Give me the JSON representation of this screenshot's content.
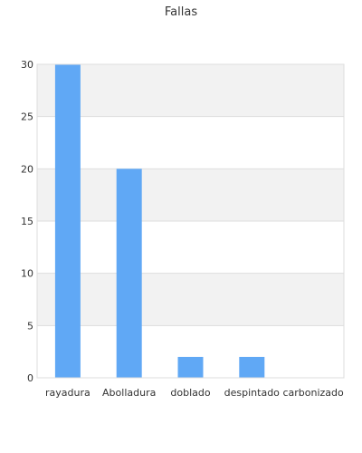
{
  "chart_data": {
    "type": "bar",
    "title": "Fallas",
    "categories": [
      "rayadura",
      "Abolladura",
      "doblado",
      "despintado",
      "carbonizado"
    ],
    "values": [
      30,
      20,
      2,
      2,
      0
    ],
    "yticks": [
      0,
      5,
      10,
      15,
      20,
      25,
      30
    ],
    "ylim": [
      0,
      30
    ],
    "xlabel": "",
    "ylabel": "",
    "grid": true,
    "legend": "none",
    "bar_color": "#60a8f5",
    "band_color": "#f2f2f2",
    "grid_color": "#dddddd"
  }
}
